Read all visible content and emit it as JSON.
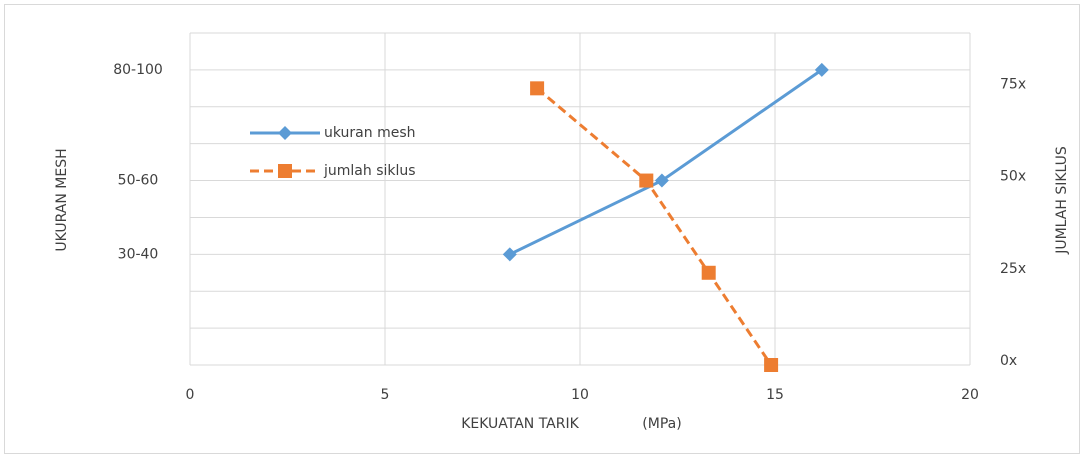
{
  "chart_data": {
    "type": "line",
    "xlabel": "KEKUATAN TARIK",
    "xlabel_unit": "(MPa)",
    "ylabel": "UKURAN MESH",
    "y2label": "JUMLAH SIKLUS",
    "xlim": [
      0,
      20
    ],
    "xticks": [
      0,
      5,
      10,
      15,
      20
    ],
    "ylim": [
      0,
      9
    ],
    "yticks": [
      {
        "value": 3,
        "label": "30-40"
      },
      {
        "value": 5,
        "label": "50-60"
      },
      {
        "value": 8,
        "label": "80-100"
      }
    ],
    "ygrid_lines": [
      0,
      1,
      2,
      3,
      4,
      5,
      6,
      7,
      8,
      9
    ],
    "y2lim": [
      0,
      90
    ],
    "y2ticks": [
      {
        "value": 0,
        "label": "0x"
      },
      {
        "value": 25,
        "label": "25x"
      },
      {
        "value": 50,
        "label": "50x"
      },
      {
        "value": 75,
        "label": "75x"
      }
    ],
    "grid": true,
    "legend": "upper left",
    "series": [
      {
        "name": "ukuran mesh",
        "color": "#5b9bd5",
        "marker": "diamond",
        "dash": "solid",
        "x": [
          8.2,
          12.1,
          16.2
        ],
        "values": [
          3,
          5,
          8
        ]
      },
      {
        "name": "jumlah siklus",
        "color": "#ed7d31",
        "marker": "square",
        "dash": "dashed",
        "axis": "y2",
        "x": [
          8.9,
          11.7,
          13.3,
          14.9
        ],
        "values": [
          75,
          50,
          25,
          0
        ]
      }
    ]
  }
}
